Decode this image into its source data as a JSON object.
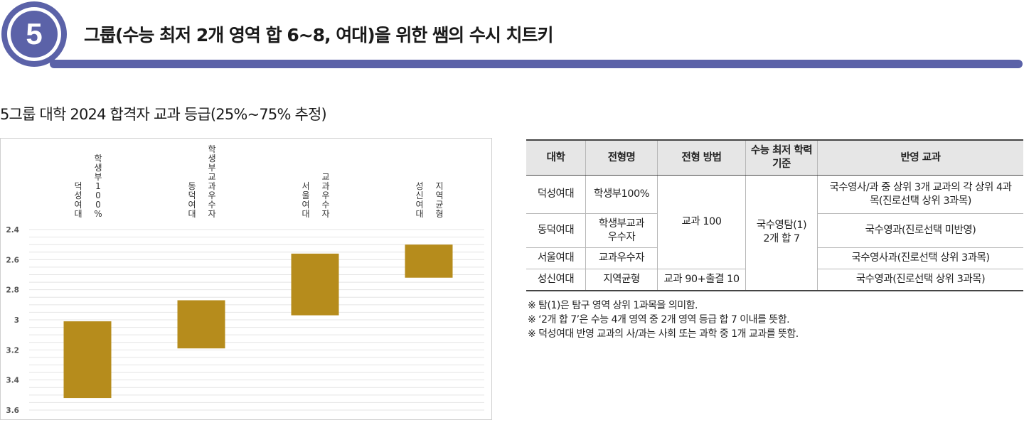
{
  "header": {
    "badge_number": "5",
    "title": "그룹(수능 최저 2개 영역 합 6~8, 여대)을 위한 쌤의 수시 치트키",
    "accent_color": "#5b62a8"
  },
  "subtitle": "5그룹 대학 2024 합격자 교과 등급(25%~75% 추정)",
  "chart_data": {
    "type": "bar",
    "orientation": "floating-range",
    "y_axis": {
      "min": 2.4,
      "max": 3.6,
      "reversed": true,
      "ticks": [
        "2.4",
        "2.6",
        "2.8",
        "3",
        "3.2",
        "3.4",
        "3.6"
      ]
    },
    "grid": true,
    "bar_color": "#b68c1c",
    "categories": [
      {
        "university": "덕성여대",
        "track": "학생부100%",
        "low": 3.01,
        "high": 3.52
      },
      {
        "university": "동덕여대",
        "track": "학생부교과우수자",
        "low": 2.87,
        "high": 3.19
      },
      {
        "university": "서울여대",
        "track": "교과우수자",
        "low": 2.56,
        "high": 2.97
      },
      {
        "university": "성신여대",
        "track": "지역균형",
        "low": 2.5,
        "high": 2.72
      }
    ]
  },
  "table": {
    "headers": [
      "대학",
      "전형명",
      "전형 방법",
      "수능 최저 학력 기준",
      "반영 교과"
    ],
    "rows": [
      {
        "univ": "덕성여대",
        "track": "학생부100%",
        "subjects": "국수영사/과 중 상위 3개 교과의 각 상위 4과목(진로선택 상위 3과목)"
      },
      {
        "univ": "동덕여대",
        "track": "학생부교과 우수자",
        "subjects": "국수영과(진로선택 미반영)"
      },
      {
        "univ": "서울여대",
        "track": "교과우수자",
        "subjects": "국수영사과(진로선택 상위 3과목)"
      },
      {
        "univ": "성신여대",
        "track": "지역균형",
        "subjects": "국수영과(진로선택 상위 3과목)"
      }
    ],
    "method_merged": "교과 100",
    "method_last": "교과 90+출결 10",
    "min_standard": "국수영탐(1) 2개 합 7"
  },
  "notes": [
    "※ 탐(1)은 탐구 영역 상위 1과목을 의미함.",
    "※ ‘2개 합 7’은 수능 4개 영역 중 2개 영역 등급 합 7 이내를 뜻함.",
    "※ 덕성여대 반영 교과의 사/과는 사회 또는 과학 중 1개 교과를 뜻함."
  ]
}
